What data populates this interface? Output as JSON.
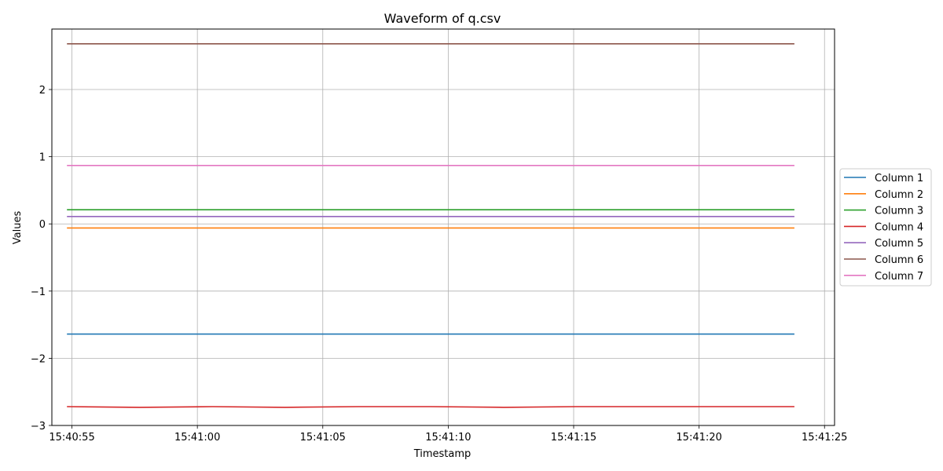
{
  "chart_data": {
    "type": "line",
    "title": "Waveform of q.csv",
    "xlabel": "Timestamp",
    "ylabel": "Values",
    "x_range": [
      "15:40:54.8",
      "15:41:23.8"
    ],
    "xlim": [
      "15:40:54.2",
      "15:41:25.4"
    ],
    "ylim": [
      -3,
      2.9
    ],
    "x_ticks": [
      "15:40:55",
      "15:41:00",
      "15:41:05",
      "15:41:10",
      "15:41:15",
      "15:41:20",
      "15:41:25"
    ],
    "y_ticks": [
      -3,
      -2,
      -1,
      0,
      1,
      2
    ],
    "y_tick_labels": [
      "−3",
      "−2",
      "−1",
      "0",
      "1",
      "2"
    ],
    "grid": true,
    "legend_position": "right",
    "series": [
      {
        "name": "Column 1",
        "color": "#1f77b4",
        "values": [
          -1.64,
          -1.64,
          -1.64,
          -1.64,
          -1.64,
          -1.64,
          -1.64
        ]
      },
      {
        "name": "Column 2",
        "color": "#ff7f0e",
        "values": [
          -0.06,
          -0.06,
          -0.06,
          -0.06,
          -0.06,
          -0.06,
          -0.06
        ]
      },
      {
        "name": "Column 3",
        "color": "#2ca02c",
        "values": [
          0.21,
          0.21,
          0.21,
          0.21,
          0.21,
          0.21,
          0.21
        ]
      },
      {
        "name": "Column 4",
        "color": "#d62728",
        "values": [
          -2.72,
          -2.73,
          -2.72,
          -2.73,
          -2.72,
          -2.72,
          -2.73,
          -2.72,
          -2.72,
          -2.72,
          -2.72
        ]
      },
      {
        "name": "Column 5",
        "color": "#9467bd",
        "values": [
          0.11,
          0.11,
          0.11,
          0.11,
          0.11,
          0.11,
          0.11
        ]
      },
      {
        "name": "Column 6",
        "color": "#8c564b",
        "values": [
          2.68,
          2.68,
          2.68,
          2.68,
          2.68,
          2.68,
          2.68
        ]
      },
      {
        "name": "Column 7",
        "color": "#e377c2",
        "values": [
          0.87,
          0.87,
          0.87,
          0.87,
          0.87,
          0.87,
          0.87
        ]
      }
    ]
  }
}
